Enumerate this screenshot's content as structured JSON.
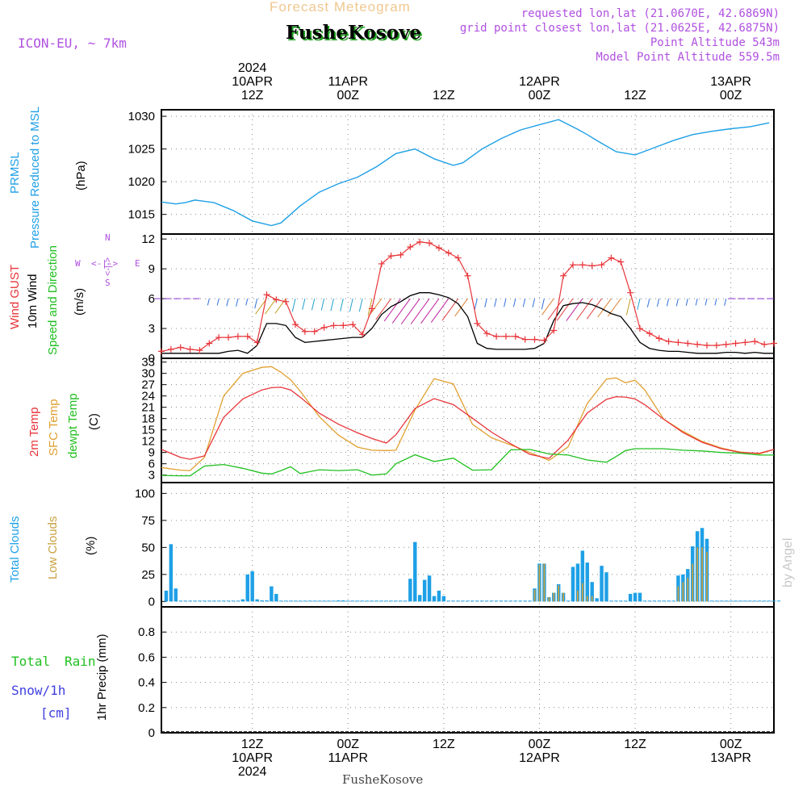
{
  "header": {
    "subtitle": "Forecast Meteogram",
    "location": "FusheKosove",
    "model": "ICON-EU, ~ 7km",
    "requested": "requested lon,lat (21.0670E, 42.6869N)",
    "closest": "grid point closest lon,lat (21.0625E, 42.6875N)",
    "point_altitude": "Point Altitude 543m",
    "model_altitude": "Model Point Altitude 559.5m",
    "credit": "by Angel",
    "footer_location": "FusheKosove"
  },
  "time_axis": {
    "top_labels": [
      {
        "lines": [
          "2024",
          "10APR",
          "12Z"
        ]
      },
      {
        "lines": [
          "11APR",
          "00Z"
        ]
      },
      {
        "lines": [
          "12Z"
        ]
      },
      {
        "lines": [
          "12APR",
          "00Z"
        ]
      },
      {
        "lines": [
          "12Z"
        ]
      },
      {
        "lines": [
          "13APR",
          "00Z"
        ]
      }
    ],
    "bottom_labels": [
      {
        "lines": [
          "12Z",
          "10APR",
          "2024"
        ]
      },
      {
        "lines": [
          "00Z",
          "11APR"
        ]
      },
      {
        "lines": [
          "12Z"
        ]
      },
      {
        "lines": [
          "00Z",
          "12APR"
        ]
      },
      {
        "lines": [
          "12Z"
        ]
      },
      {
        "lines": [
          "00Z",
          "13APR"
        ]
      }
    ]
  },
  "panel_labels": {
    "pressure": [
      "PRMSL",
      "Pressure Reduced to MSL",
      "(hPa)"
    ],
    "wind": [
      "Wind GUST",
      "10m Wind",
      "Speed and Direction",
      "(m/s)"
    ],
    "compass": {
      "n": "N",
      "s": "S",
      "w": "W",
      "e": "E",
      "ns": "<-|->",
      "we": "<-|->"
    },
    "temp": [
      "2m Temp",
      "SFC Temp",
      "dewpt Temp",
      "(C)"
    ],
    "clouds": [
      "Total Clouds",
      "Low Clouds",
      "(%)"
    ],
    "precip_left": [
      "Total",
      "Rain",
      "Snow/1h",
      "[cm]"
    ],
    "precip_axis": "1hr Precip (mm)"
  },
  "colors": {
    "pressure": "#1ea0e6",
    "gust": "#e8353a",
    "wind": "#000000",
    "temp2m": "#e8353a",
    "sfc": "#e0a030",
    "dew": "#20c020",
    "total_clouds": "#1ea0e6",
    "low_clouds": "#c8a040",
    "model_label": "#b050e0",
    "precip_total": "#20c020",
    "precip_snow": "#4040e0"
  },
  "chart_data": [
    {
      "type": "line",
      "name": "pressure",
      "title": "PRMSL Pressure Reduced to MSL",
      "ylabel": "hPa",
      "ylim": [
        1012,
        1031
      ],
      "yticks": [
        1015,
        1020,
        1025,
        1030
      ],
      "x_hours": [
        0,
        3,
        5,
        7,
        11,
        15,
        19,
        23,
        25,
        29,
        33,
        37,
        41,
        45,
        49,
        53,
        57,
        61,
        63,
        67,
        71,
        75,
        79,
        83,
        87,
        89,
        91,
        95,
        99,
        103,
        107,
        111,
        115,
        119,
        123,
        127
      ],
      "values": [
        1016.9,
        1016.6,
        1016.8,
        1017.2,
        1016.8,
        1015.6,
        1014.0,
        1013.3,
        1013.7,
        1016.3,
        1018.4,
        1019.7,
        1020.7,
        1022.3,
        1024.3,
        1025.0,
        1023.5,
        1022.5,
        1022.9,
        1025.0,
        1026.6,
        1027.9,
        1028.7,
        1029.5,
        1028.0,
        1027.2,
        1026.3,
        1024.6,
        1024.1,
        1025.2,
        1026.3,
        1027.2,
        1027.7,
        1028.1,
        1028.4,
        1029.0
      ]
    },
    {
      "type": "line",
      "name": "wind",
      "title": "Wind GUST / 10m Wind Speed and Direction",
      "ylabel": "m/s",
      "ylim": [
        0,
        12.5
      ],
      "yticks": [
        0,
        3,
        6,
        9,
        12
      ],
      "x_hours": [
        0,
        2,
        4,
        6,
        8,
        10,
        12,
        14,
        16,
        18,
        20,
        22,
        24,
        26,
        28,
        30,
        32,
        34,
        36,
        38,
        40,
        42,
        44,
        46,
        48,
        50,
        52,
        54,
        56,
        58,
        60,
        62,
        64,
        66,
        68,
        70,
        72,
        74,
        76,
        78,
        80,
        82,
        84,
        86,
        88,
        90,
        92,
        94,
        96,
        98,
        100,
        102,
        104,
        106,
        108,
        110,
        112,
        114,
        116,
        118,
        120,
        122,
        124,
        126,
        128
      ],
      "gust": [
        0.7,
        0.9,
        1.1,
        0.9,
        0.8,
        1.5,
        2.1,
        2.1,
        2.2,
        2.2,
        1.6,
        6.4,
        5.9,
        5.7,
        3.4,
        2.7,
        2.7,
        3.1,
        3.3,
        3.3,
        3.4,
        2.4,
        5.0,
        9.5,
        10.3,
        10.4,
        11.2,
        11.7,
        11.6,
        11.1,
        10.6,
        10.1,
        8.3,
        3.5,
        2.5,
        2.2,
        2.2,
        2.2,
        1.9,
        1.9,
        1.8,
        2.8,
        8.3,
        9.4,
        9.4,
        9.3,
        9.4,
        10.1,
        9.7,
        6.6,
        3.0,
        2.5,
        2.0,
        1.7,
        1.6,
        1.5,
        1.4,
        1.3,
        1.3,
        1.4,
        1.5,
        1.6,
        1.7,
        1.4,
        1.5
      ],
      "wind": [
        0.5,
        0.5,
        0.5,
        0.5,
        0.5,
        0.5,
        0.5,
        0.7,
        0.8,
        0.5,
        1.3,
        3.5,
        3.5,
        3.3,
        2.1,
        1.6,
        1.7,
        1.8,
        1.9,
        2.0,
        2.1,
        2.1,
        3.0,
        4.4,
        5.2,
        5.7,
        6.3,
        6.6,
        6.6,
        6.4,
        6.1,
        5.5,
        4.2,
        1.5,
        1.0,
        0.9,
        0.9,
        0.9,
        0.9,
        1.0,
        1.5,
        3.8,
        5.3,
        5.5,
        5.6,
        5.4,
        5.0,
        4.5,
        4.2,
        3.0,
        1.6,
        1.0,
        0.8,
        0.7,
        0.7,
        0.6,
        0.5,
        0.5,
        0.5,
        0.6,
        0.6,
        0.5,
        0.6,
        0.5,
        0.5
      ],
      "direction_barbs": "arrows along 6 m/s line"
    },
    {
      "type": "line",
      "name": "temperature",
      "title": "2m Temp / SFC Temp / dewpt Temp",
      "ylabel": "C",
      "ylim": [
        1,
        34
      ],
      "yticks": [
        3,
        6,
        9,
        12,
        15,
        18,
        21,
        24,
        27,
        30,
        33
      ],
      "x_hours": [
        0,
        4,
        6,
        9,
        13,
        17,
        21,
        23,
        25,
        27,
        29,
        33,
        37,
        41,
        44,
        47,
        49,
        53,
        57,
        61,
        65,
        69,
        73,
        77,
        81,
        85,
        89,
        93,
        95,
        97,
        99,
        101,
        105,
        109,
        113,
        117,
        121,
        125,
        128
      ],
      "temp2m": [
        9.8,
        7.7,
        7.2,
        8.1,
        18.3,
        23.2,
        25.6,
        26.2,
        26.3,
        25.6,
        23.7,
        19.4,
        16.5,
        14.2,
        12.7,
        11.5,
        13.7,
        20.7,
        23.3,
        21.7,
        18.1,
        14.4,
        11.3,
        8.5,
        7.4,
        12.3,
        19.5,
        23.1,
        23.8,
        23.7,
        23.2,
        21.7,
        17.8,
        14.3,
        11.7,
        10.0,
        9.0,
        8.8,
        9.8
      ],
      "sfc": [
        5.0,
        4.3,
        4.2,
        7.7,
        24.0,
        30.0,
        31.6,
        31.8,
        30.3,
        28.3,
        25.3,
        18.5,
        13.6,
        10.4,
        9.6,
        9.5,
        9.6,
        20.3,
        28.6,
        27.2,
        16.5,
        12.9,
        11.0,
        9.0,
        6.9,
        10.5,
        22.0,
        28.5,
        28.8,
        27.5,
        28.2,
        25.6,
        17.8,
        14.6,
        11.9,
        10.2,
        9.1,
        8.6,
        9.8
      ],
      "dewpoint": [
        2.9,
        2.8,
        2.8,
        5.4,
        5.8,
        4.8,
        3.5,
        3.3,
        4.2,
        5.2,
        3.4,
        4.4,
        4.2,
        4.4,
        3.0,
        3.3,
        6.0,
        8.4,
        6.6,
        7.5,
        4.3,
        4.4,
        9.7,
        9.8,
        8.6,
        8.3,
        7.0,
        6.4,
        7.9,
        9.5,
        10.0,
        10.0,
        10.0,
        9.6,
        9.4,
        9.0,
        8.8,
        8.3,
        8.3
      ]
    },
    {
      "type": "bar",
      "name": "clouds",
      "title": "Total Clouds / Low Clouds",
      "ylabel": "%",
      "ylim": [
        -5,
        110
      ],
      "yticks": [
        0,
        25,
        50,
        75,
        100
      ],
      "x_hours": [
        0,
        1,
        2,
        3,
        4,
        5,
        6,
        7,
        8,
        9,
        10,
        11,
        12,
        13,
        14,
        15,
        16,
        17,
        18,
        19,
        20,
        21,
        22,
        23,
        24,
        25,
        26,
        27,
        28,
        29,
        30,
        31,
        32,
        33,
        34,
        35,
        36,
        37,
        38,
        39,
        40,
        41,
        42,
        43,
        44,
        45,
        46,
        47,
        48,
        49,
        50,
        51,
        52,
        53,
        54,
        55,
        56,
        57,
        58,
        59,
        60,
        61,
        62,
        63,
        64,
        65,
        66,
        67,
        68,
        69,
        70,
        71,
        72,
        73,
        74,
        75,
        76,
        77,
        78,
        79,
        80,
        81,
        82,
        83,
        84,
        85,
        86,
        87,
        88,
        89,
        90,
        91,
        92,
        93,
        94,
        95,
        96,
        97,
        98,
        99,
        100,
        101,
        102,
        103,
        104,
        105,
        106,
        107,
        108,
        109,
        110,
        111,
        112,
        113,
        114,
        115,
        116,
        117,
        118,
        119,
        120,
        121,
        122,
        123,
        124,
        125,
        126,
        127,
        128
      ],
      "total": [
        10,
        53,
        12,
        0,
        0,
        0,
        0,
        0,
        0,
        0,
        0,
        0,
        0,
        0,
        0,
        0,
        2,
        25,
        28,
        2,
        1,
        1,
        14,
        7,
        0,
        0,
        0,
        0,
        0,
        0,
        0,
        0,
        0,
        0,
        0,
        0,
        1,
        1,
        0,
        0,
        0,
        0,
        0,
        0,
        0,
        0,
        0,
        0,
        0,
        0,
        0,
        21,
        55,
        6,
        20,
        24,
        5,
        10,
        5,
        0,
        0,
        0,
        0,
        0,
        0,
        0,
        0,
        0,
        0,
        0,
        0,
        0,
        0,
        0,
        0,
        0,
        0,
        12,
        35,
        35,
        4,
        8,
        16,
        8,
        0,
        32,
        35,
        47,
        36,
        18,
        3,
        33,
        27,
        0,
        0,
        0,
        0,
        7,
        8,
        8,
        0,
        0,
        0,
        0,
        0,
        0,
        0,
        24,
        25,
        30,
        51,
        65,
        68,
        58,
        0,
        0,
        0,
        0,
        0,
        0,
        0,
        0,
        0,
        0,
        0,
        0,
        0,
        0,
        0
      ],
      "low": [
        0,
        0,
        0,
        0,
        0,
        0,
        0,
        0,
        0,
        0,
        0,
        0,
        0,
        0,
        0,
        0,
        0,
        0,
        0,
        0,
        0,
        0,
        0,
        0,
        0,
        0,
        0,
        0,
        0,
        0,
        0,
        0,
        0,
        0,
        0,
        0,
        0,
        0,
        0,
        0,
        0,
        0,
        0,
        0,
        0,
        0,
        0,
        0,
        0,
        0,
        0,
        0,
        0,
        0,
        0,
        0,
        0,
        0,
        0,
        0,
        0,
        0,
        0,
        0,
        0,
        0,
        0,
        0,
        0,
        0,
        0,
        0,
        0,
        0,
        0,
        0,
        0,
        11,
        34,
        35,
        4,
        8,
        15,
        8,
        0,
        0,
        10,
        17,
        5,
        5,
        0,
        0,
        0,
        0,
        0,
        0,
        0,
        0,
        0,
        0,
        0,
        0,
        0,
        0,
        0,
        0,
        0,
        14,
        18,
        22,
        35,
        50,
        50,
        46,
        0,
        0,
        0,
        0,
        0,
        0,
        0,
        0,
        0,
        0,
        0,
        0,
        0,
        0,
        0
      ]
    },
    {
      "type": "bar",
      "name": "precipitation",
      "title": "1hr Precip (mm)",
      "ylabel": "mm",
      "ylim": [
        0,
        1.0
      ],
      "yticks": [
        0,
        0.2,
        0.4,
        0.6,
        0.8
      ],
      "ytick_labels": [
        "0",
        "0.2",
        "0.4",
        "0.6",
        "0.8"
      ],
      "values": []
    }
  ]
}
